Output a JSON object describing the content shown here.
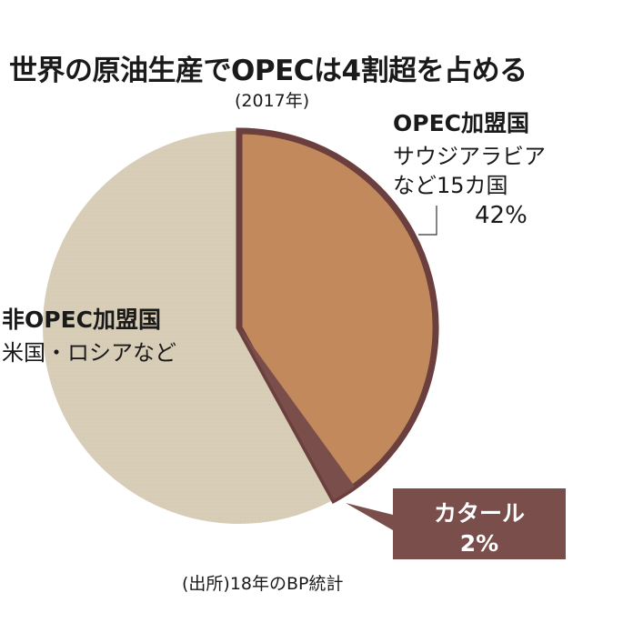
{
  "title": "世界の原油生産でOPECは4割超を占める",
  "subtitle": "(2017年)",
  "labels": {
    "opec": {
      "name": "OPEC加盟国",
      "desc1": "サウジアラビア",
      "desc2": "など15カ国",
      "pct": "42%"
    },
    "non_opec": {
      "name": "非OPEC加盟国",
      "desc": "米国・ロシアなど"
    },
    "qatar": {
      "name": "カタール",
      "pct": "2%"
    }
  },
  "source": "(出所)18年のBP統計",
  "colors": {
    "opec": "#c28a5c",
    "non_opec": "#d8cdb6",
    "qatar": "#7a4e4a",
    "outline": "#6a3f3d"
  },
  "chart_data": {
    "type": "pie",
    "title": "世界の原油生産でOPECは4割超を占める",
    "subtitle": "(2017年)",
    "categories": [
      "OPEC加盟国 (サウジアラビアなど15カ国)",
      "うちカタール",
      "非OPEC加盟国 (米国・ロシアなど)"
    ],
    "values": [
      42,
      2,
      58
    ],
    "notes": "カタール 2% is shown as a sub-slice within the OPEC 42% wedge; OPEC wedge starts at 12 o'clock and runs clockwise",
    "source": "(出所)18年のBP統計",
    "legend": "none (direct labels)"
  }
}
